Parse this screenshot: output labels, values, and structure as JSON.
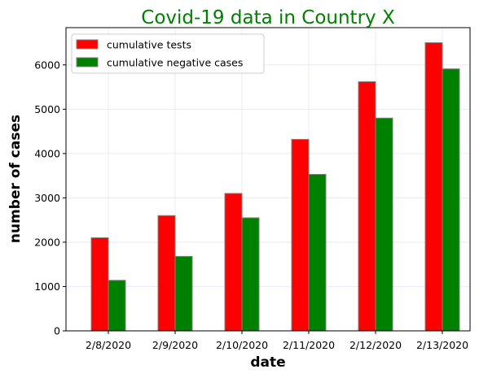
{
  "chart_data": {
    "type": "bar",
    "title": "Covid-19 data in Country X",
    "title_color": "#008000",
    "xlabel": "date",
    "ylabel": "number of cases",
    "categories": [
      "2/8/2020",
      "2/9/2020",
      "2/10/2020",
      "2/11/2020",
      "2/12/2020",
      "2/13/2020"
    ],
    "series": [
      {
        "name": "cumulative tests",
        "color": "#ff0000",
        "values": [
          2100,
          2600,
          3100,
          4320,
          5620,
          6500
        ]
      },
      {
        "name": "cumulative negative cases",
        "color": "#008000",
        "values": [
          1140,
          1680,
          2550,
          3530,
          4800,
          5910
        ]
      }
    ],
    "ylim": [
      0,
      6840
    ],
    "yticks": [
      0,
      1000,
      2000,
      3000,
      4000,
      5000,
      6000
    ],
    "grid": true,
    "legend_position": "top-left",
    "bar_edge_color": "#808080"
  }
}
